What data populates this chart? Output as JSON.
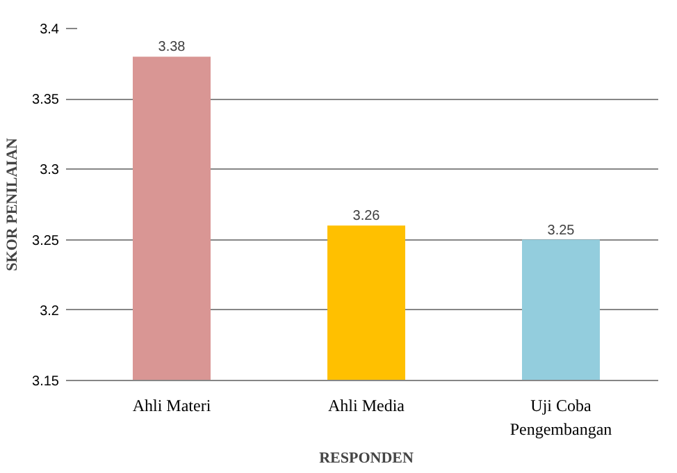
{
  "chart_data": {
    "type": "bar",
    "xlabel": "RESPONDEN",
    "ylabel": "SKOR PENILAIAN",
    "categories": [
      "Ahli Materi",
      "Ahli Media",
      "Uji Coba Pengembangan"
    ],
    "values": [
      3.38,
      3.26,
      3.25
    ],
    "colors": [
      "#d99694",
      "#ffc000",
      "#93cddd"
    ],
    "ylim": [
      3.15,
      3.4
    ],
    "yticks": [
      3.15,
      3.2,
      3.25,
      3.3,
      3.35,
      3.4
    ],
    "grid": "y",
    "data_labels": true
  }
}
